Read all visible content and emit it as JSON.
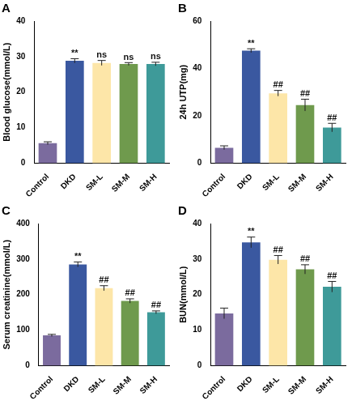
{
  "chart_data": [
    {
      "type": "bar",
      "title": "A",
      "y_label": "Blood glucose(mmol/L)",
      "categories": [
        "Control",
        "DKD",
        "SM-L",
        "SM-M",
        "SM-H"
      ],
      "values": [
        5.6,
        28.8,
        28.2,
        27.9,
        27.9
      ],
      "errors": [
        0.4,
        0.6,
        0.7,
        0.4,
        0.5
      ],
      "annotations": [
        null,
        "**",
        "ns",
        "ns",
        "ns"
      ],
      "colors": [
        "#7b6b9e",
        "#3a58a0",
        "#fde6a8",
        "#6f9a4d",
        "#3e9a99"
      ],
      "ylim": [
        0,
        40
      ],
      "yticks": [
        0,
        10,
        20,
        30,
        40
      ],
      "grid": false
    },
    {
      "type": "bar",
      "title": "B",
      "y_label": "24h UTP(mg)",
      "categories": [
        "Control",
        "DKD",
        "SM-L",
        "SM-M",
        "SM-H"
      ],
      "values": [
        6.5,
        47.5,
        29.5,
        24.5,
        15
      ],
      "errors": [
        0.8,
        0.8,
        1.2,
        2.5,
        1.8
      ],
      "annotations": [
        null,
        "**",
        "##",
        "##",
        "##"
      ],
      "colors": [
        "#7b6b9e",
        "#3a58a0",
        "#fde6a8",
        "#6f9a4d",
        "#3e9a99"
      ],
      "ylim": [
        0,
        60
      ],
      "yticks": [
        0,
        20,
        40,
        60
      ],
      "grid": false
    },
    {
      "type": "bar",
      "title": "C",
      "y_label": "Serum creatinine(mmol/L)",
      "categories": [
        "Control",
        "DKD",
        "SM-L",
        "SM-M",
        "SM-H"
      ],
      "values": [
        85,
        285,
        218,
        182,
        150
      ],
      "errors": [
        3,
        7,
        7,
        6,
        4
      ],
      "annotations": [
        null,
        "**",
        "##",
        "##",
        "##"
      ],
      "colors": [
        "#7b6b9e",
        "#3a58a0",
        "#fde6a8",
        "#6f9a4d",
        "#3e9a99"
      ],
      "ylim": [
        0,
        400
      ],
      "yticks": [
        0,
        100,
        200,
        300,
        400
      ],
      "grid": false
    },
    {
      "type": "bar",
      "title": "D",
      "y_label": "BUN(mmol/L)",
      "categories": [
        "Control",
        "DKD",
        "SM-L",
        "SM-M",
        "SM-H"
      ],
      "values": [
        14.7,
        34.7,
        29.8,
        27.1,
        22.2
      ],
      "errors": [
        1.5,
        1.5,
        1.2,
        1.3,
        1.5
      ],
      "annotations": [
        null,
        "**",
        "##",
        "##",
        "##"
      ],
      "colors": [
        "#7b6b9e",
        "#3a58a0",
        "#fde6a8",
        "#6f9a4d",
        "#3e9a99"
      ],
      "ylim": [
        0,
        40
      ],
      "yticks": [
        0,
        10,
        20,
        30,
        40
      ],
      "grid": false
    }
  ]
}
